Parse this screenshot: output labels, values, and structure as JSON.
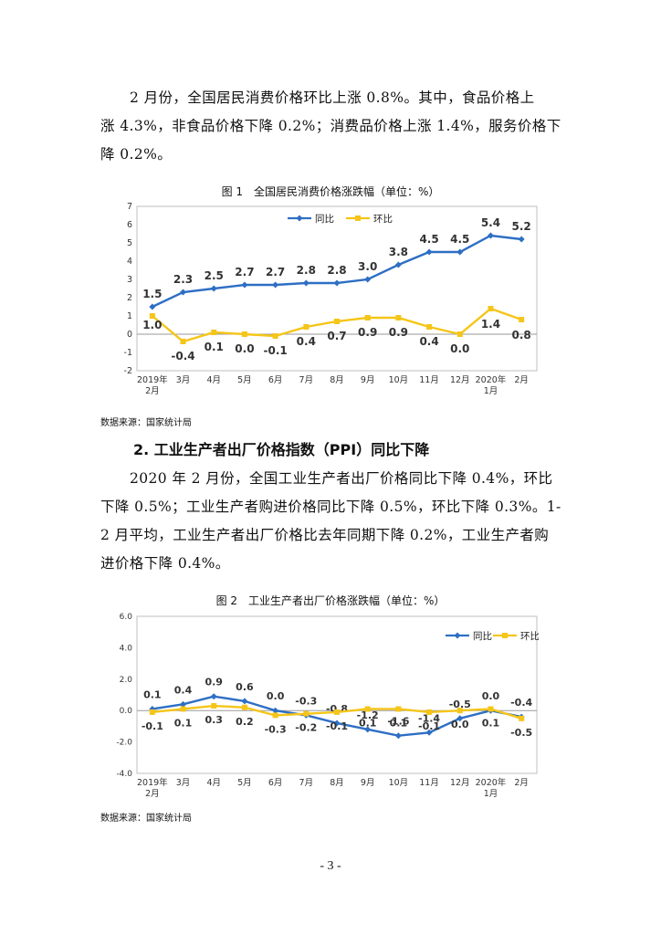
{
  "para1": {
    "lines": [
      "2 月份，全国居民消费价格环比上涨 0.8%。其中，食品价格上",
      "涨 4.3%，非食品价格下降 0.2%；消费品价格上涨 1.4%，服务价格下",
      "降 0.2%。"
    ]
  },
  "figure1": {
    "caption": "图 1　全国居民消费价格涨跌幅（单位：%）",
    "source": "数据来源：国家统计局"
  },
  "section2": {
    "heading": "2. 工业生产者出厂价格指数（PPI）同比下降"
  },
  "para2": {
    "lines": [
      "2020 年 2 月份，全国工业生产者出厂价格同比下降 0.4%，环比",
      "下降 0.5%；工业生产者购进价格同比下降 0.5%，环比下降 0.3%。1-",
      "2 月平均，工业生产者出厂价格比去年同期下降 0.2%，工业生产者购",
      "进价格下降 0.4%。"
    ]
  },
  "figure2": {
    "caption": "图 2　工业生产者出厂价格涨跌幅（单位：%）",
    "source": "数据来源：国家统计局"
  },
  "page_number": "- 3 -",
  "colors": {
    "yoy": "#2e6fc4",
    "mom": "#f5c518"
  },
  "chart_data": [
    {
      "type": "line",
      "title": "图 1　全国居民消费价格涨跌幅（单位：%）",
      "categories": [
        [
          "2019年",
          "2月"
        ],
        [
          "3月"
        ],
        [
          "4月"
        ],
        [
          "5月"
        ],
        [
          "6月"
        ],
        [
          "7月"
        ],
        [
          "8月"
        ],
        [
          "9月"
        ],
        [
          "10月"
        ],
        [
          "11月"
        ],
        [
          "12月"
        ],
        [
          "2020年",
          "1月"
        ],
        [
          "2月"
        ]
      ],
      "series": [
        {
          "name": "同比",
          "values": [
            1.5,
            2.3,
            2.5,
            2.7,
            2.7,
            2.8,
            2.8,
            3.0,
            3.8,
            4.5,
            4.5,
            5.4,
            5.2
          ],
          "labels": [
            "1.5",
            "2.3",
            "2.5",
            "2.7",
            "2.7",
            "2.8",
            "2.8",
            "3.0",
            "3.8",
            "4.5",
            "4.5",
            "5.4",
            "5.2"
          ]
        },
        {
          "name": "环比",
          "values": [
            1.0,
            -0.4,
            0.1,
            0.0,
            -0.1,
            0.4,
            0.7,
            0.9,
            0.9,
            0.4,
            0.0,
            1.4,
            0.8
          ],
          "labels": [
            "1.0",
            "-0.4",
            "0.1",
            "0.0",
            "-0.1",
            "0.4",
            "0.7",
            "0.9",
            "0.9",
            "0.4",
            "0.0",
            "1.4",
            "0.8"
          ]
        }
      ],
      "ylim": [
        -2,
        7
      ],
      "yticks": [
        "7",
        "6",
        "5",
        "4",
        "3",
        "2",
        "1",
        "0",
        "-1",
        "-2"
      ],
      "legend": "top-center",
      "grid": false
    },
    {
      "type": "line",
      "title": "图 2　工业生产者出厂价格涨跌幅（单位：%）",
      "categories": [
        [
          "2019年",
          "2月"
        ],
        [
          "3月"
        ],
        [
          "4月"
        ],
        [
          "5月"
        ],
        [
          "6月"
        ],
        [
          "7月"
        ],
        [
          "8月"
        ],
        [
          "9月"
        ],
        [
          "10月"
        ],
        [
          "11月"
        ],
        [
          "12月"
        ],
        [
          "2020年",
          "1月"
        ],
        [
          "2月"
        ]
      ],
      "series": [
        {
          "name": "同比",
          "values": [
            0.1,
            0.4,
            0.9,
            0.6,
            0.0,
            -0.3,
            -0.8,
            -1.2,
            -1.6,
            -1.4,
            -0.5,
            0.0,
            -0.4
          ],
          "labels": [
            "0.1",
            "0.4",
            "0.9",
            "0.6",
            "0.0",
            "-0.3",
            "-0.8",
            "-1.2",
            "-1.6",
            "-1.4",
            "-0.5",
            "0.0",
            "-0.4"
          ]
        },
        {
          "name": "环比",
          "values": [
            -0.1,
            0.1,
            0.3,
            0.2,
            -0.3,
            -0.2,
            -0.1,
            0.1,
            0.1,
            -0.1,
            0.0,
            0.1,
            -0.5
          ],
          "labels": [
            "-0.1",
            "0.1",
            "0.3",
            "0.2",
            "-0.3",
            "-0.2",
            "-0.1",
            "0.1",
            "0.1",
            "-0.1",
            "0.0",
            "0.1",
            "-0.5"
          ]
        }
      ],
      "ylim": [
        -4,
        6
      ],
      "yticks": [
        "6.0",
        "4.0",
        "2.0",
        "0.0",
        "-2.0",
        "-4.0"
      ],
      "legend": "top-right",
      "grid": false
    }
  ]
}
